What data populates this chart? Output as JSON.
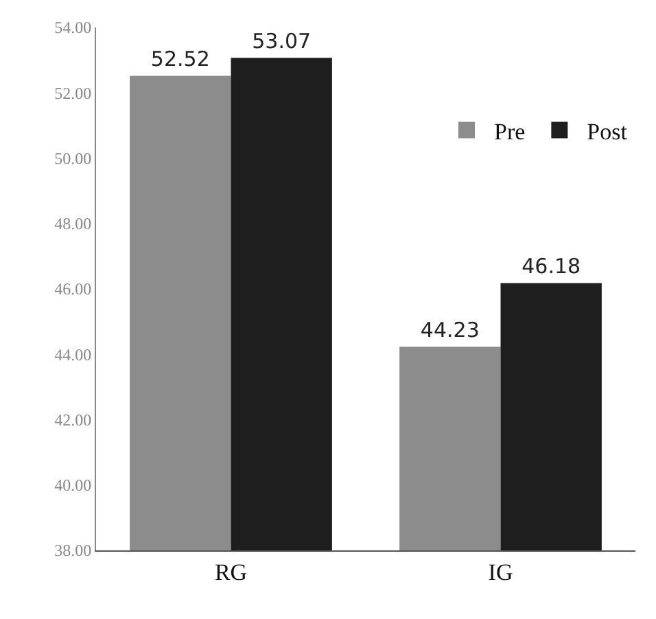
{
  "chart_data": {
    "type": "bar",
    "categories": [
      "RG",
      "IG"
    ],
    "series": [
      {
        "name": "Pre",
        "color": "#8c8c8c",
        "values": [
          52.52,
          44.23
        ]
      },
      {
        "name": "Post",
        "color": "#1e1e1e",
        "values": [
          53.07,
          46.18
        ]
      }
    ],
    "ylim": [
      38,
      54
    ],
    "yticks": [
      {
        "value": 38,
        "label": "38.00"
      },
      {
        "value": 40,
        "label": "40.00"
      },
      {
        "value": 42,
        "label": "42.00"
      },
      {
        "value": 44,
        "label": "44.00"
      },
      {
        "value": 46,
        "label": "46.00"
      },
      {
        "value": 48,
        "label": "48.00"
      },
      {
        "value": 50,
        "label": "50.00"
      },
      {
        "value": 52,
        "label": "52.00"
      },
      {
        "value": 54,
        "label": "54.00"
      }
    ],
    "data_labels": true,
    "grid": false,
    "legend": "top right"
  }
}
